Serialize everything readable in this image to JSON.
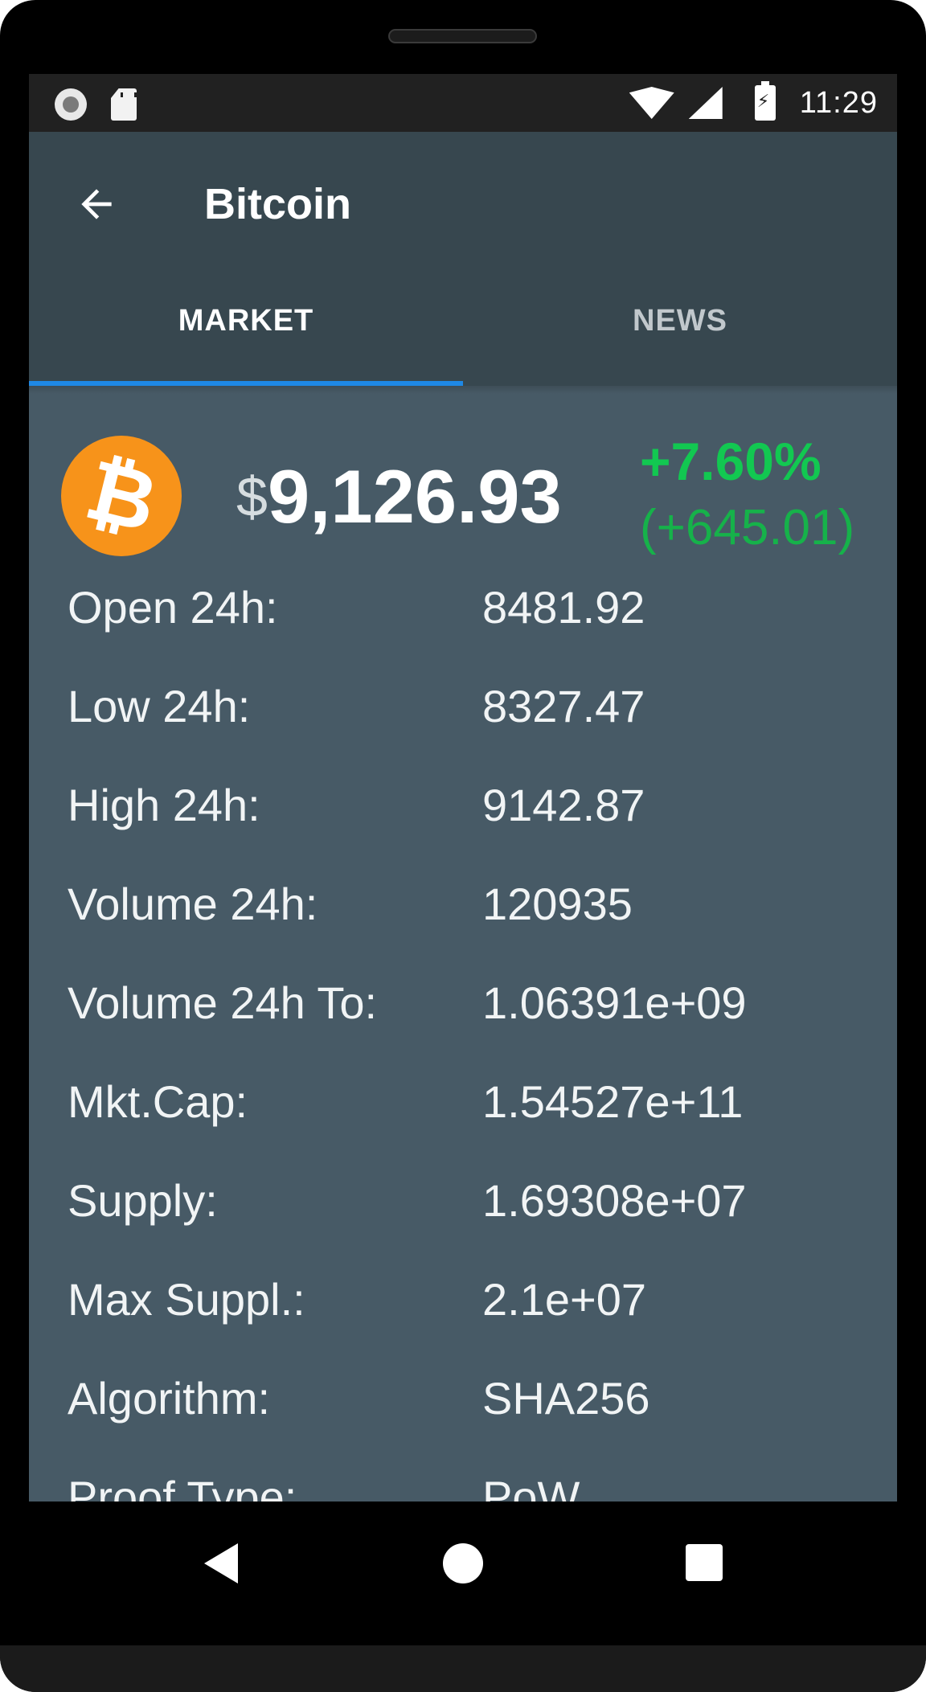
{
  "statusbar": {
    "time": "11:29",
    "icons": [
      "record-icon",
      "sd-card-icon",
      "wifi-icon",
      "signal-icon",
      "battery-charging-icon"
    ]
  },
  "appbar": {
    "title": "Bitcoin",
    "back_icon": "arrow-left-icon"
  },
  "tabs": [
    {
      "label": "MARKET",
      "active": true
    },
    {
      "label": "NEWS",
      "active": false
    }
  ],
  "price": {
    "coin_icon": "bitcoin-logo",
    "currency": "$",
    "value": "9,126.93",
    "change_pct": "+7.60%",
    "change_abs": "(+645.01)"
  },
  "stats": [
    {
      "label": "Open 24h:",
      "value": "8481.92"
    },
    {
      "label": "Low 24h:",
      "value": "8327.47"
    },
    {
      "label": "High 24h:",
      "value": "9142.87"
    },
    {
      "label": "Volume 24h:",
      "value": "120935"
    },
    {
      "label": "Volume 24h To:",
      "value": "1.06391e+09"
    },
    {
      "label": "Mkt.Cap:",
      "value": "1.54527e+11"
    },
    {
      "label": "Supply:",
      "value": "1.69308e+07"
    },
    {
      "label": "Max Suppl.:",
      "value": "2.1e+07"
    },
    {
      "label": "Algorithm:",
      "value": "SHA256"
    },
    {
      "label": "Proof Type:",
      "value": "PoW"
    }
  ],
  "colors": {
    "appbar": "#37474f",
    "content": "#475a66",
    "accent": "#1e88e5",
    "positive": "#12c851",
    "coin": "#f7931a"
  },
  "navbar": {
    "icons": [
      "back-triangle-icon",
      "home-circle-icon",
      "recents-square-icon"
    ]
  }
}
